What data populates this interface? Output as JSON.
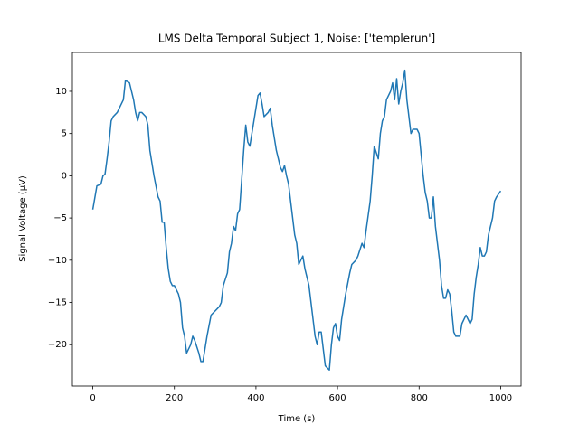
{
  "chart_data": {
    "type": "line",
    "title": "LMS Delta Temporal Subject 1, Noise: ['templerun']",
    "xlabel": "Time (s)",
    "ylabel": "Signal Voltage (μV)",
    "color": "#1f77b4",
    "x": [
      0,
      10,
      20,
      25,
      30,
      35,
      40,
      45,
      50,
      60,
      70,
      75,
      80,
      90,
      100,
      105,
      110,
      115,
      120,
      130,
      135,
      140,
      150,
      160,
      165,
      170,
      175,
      180,
      185,
      190,
      195,
      200,
      210,
      215,
      220,
      225,
      230,
      240,
      245,
      250,
      260,
      265,
      270,
      280,
      290,
      300,
      310,
      315,
      320,
      330,
      335,
      340,
      345,
      350,
      355,
      360,
      365,
      370,
      375,
      380,
      385,
      390,
      400,
      405,
      410,
      415,
      420,
      430,
      435,
      440,
      450,
      460,
      465,
      470,
      475,
      480,
      490,
      495,
      500,
      505,
      510,
      515,
      520,
      530,
      535,
      540,
      545,
      550,
      555,
      560,
      565,
      570,
      580,
      585,
      590,
      595,
      600,
      605,
      610,
      620,
      630,
      635,
      645,
      650,
      660,
      665,
      670,
      680,
      685,
      690,
      700,
      705,
      710,
      715,
      720,
      730,
      735,
      740,
      745,
      750,
      755,
      760,
      765,
      770,
      775,
      780,
      785,
      795,
      800,
      810,
      815,
      820,
      825,
      830,
      835,
      840,
      845,
      850,
      855,
      860,
      865,
      870,
      875,
      880,
      885,
      890,
      900,
      905,
      910,
      915,
      920,
      925,
      930,
      935,
      940,
      945,
      950,
      955,
      960,
      965,
      970,
      980,
      985,
      990,
      1000
    ],
    "values": [
      -4,
      -1.2,
      -1,
      0,
      0.2,
      2,
      4,
      6.5,
      7,
      7.5,
      8.5,
      9,
      11.3,
      11,
      9,
      7.5,
      6.5,
      7.5,
      7.5,
      7,
      6,
      3,
      0,
      -2.5,
      -3,
      -5.5,
      -5.5,
      -8.5,
      -11,
      -12.5,
      -13,
      -13,
      -14,
      -15,
      -18,
      -19,
      -21,
      -20,
      -19,
      -19.5,
      -21,
      -22,
      -22,
      -19,
      -16.5,
      -16,
      -15.5,
      -15,
      -13,
      -11.5,
      -9,
      -8,
      -6,
      -6.5,
      -4.5,
      -4,
      -0.5,
      3,
      6,
      4,
      3.5,
      5,
      8,
      9.5,
      9.8,
      8.5,
      7,
      7.5,
      8,
      6,
      3,
      1,
      0.5,
      1.2,
      0,
      -1,
      -5,
      -7,
      -8,
      -10.5,
      -10,
      -9.5,
      -11,
      -13,
      -15,
      -17,
      -19,
      -20,
      -18.5,
      -18.5,
      -20.5,
      -22.5,
      -23,
      -20,
      -18,
      -17.5,
      -19,
      -19.5,
      -17,
      -14,
      -11.5,
      -10.5,
      -10,
      -9.5,
      -8,
      -8.5,
      -6.5,
      -3,
      0,
      3.5,
      2,
      5,
      6.5,
      7,
      9,
      10,
      11,
      9,
      11.5,
      8.5,
      10,
      11,
      12.5,
      9,
      7,
      5,
      5.5,
      5.5,
      5,
      0,
      -2,
      -3,
      -5,
      -5,
      -2.5,
      -6,
      -8,
      -10,
      -13,
      -14.5,
      -14.5,
      -13.5,
      -14,
      -16,
      -18.5,
      -19,
      -19,
      -17.5,
      -17,
      -16.5,
      -17,
      -17.5,
      -17,
      -14,
      -12,
      -10.5,
      -8.5,
      -9.5,
      -9.5,
      -9,
      -7,
      -5,
      -3,
      -2.5,
      -1.8
    ],
    "xlim": [
      -50,
      1050
    ],
    "ylim": [
      -24.9,
      14.6
    ],
    "xticks": [
      0,
      200,
      400,
      600,
      800,
      1000
    ],
    "yticks": [
      {
        "value": -20,
        "label": "−20"
      },
      {
        "value": -15,
        "label": "−15"
      },
      {
        "value": -10,
        "label": "−10"
      },
      {
        "value": -5,
        "label": "−5"
      },
      0,
      5,
      10
    ]
  }
}
